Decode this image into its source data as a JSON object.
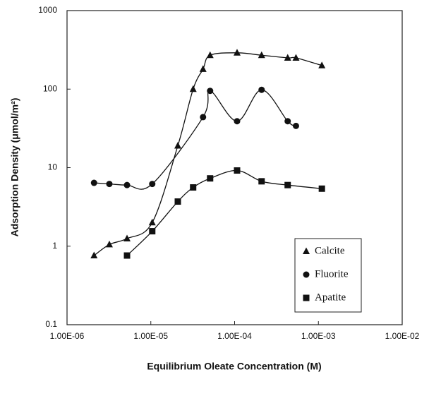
{
  "chart_data": {
    "type": "scatter",
    "xlabel": "Equilibrium Oleate Concentration (M)",
    "ylabel": "Adsorption Density (μmol/m²)",
    "xscale": "log",
    "yscale": "log",
    "xlim": [
      1e-06,
      0.01
    ],
    "xticks": [
      {
        "value": 1e-06,
        "label": "1.00E-06"
      },
      {
        "value": 1e-05,
        "label": "1.00E-05"
      },
      {
        "value": 0.0001,
        "label": "1.00E-04"
      },
      {
        "value": 0.001,
        "label": "1.00E-03"
      },
      {
        "value": 0.01,
        "label": "1.00E-02"
      }
    ],
    "ylim": [
      0.1,
      1000
    ],
    "yticks": [
      0.1,
      1,
      10,
      100,
      1000
    ],
    "series": [
      {
        "name": "Calcite",
        "color": "#111111",
        "marker": "triangle",
        "x": [
          2.1e-06,
          3.2e-06,
          5.2e-06,
          1.04e-05,
          2.1e-05,
          3.2e-05,
          4.2e-05,
          5.1e-05,
          0.000107,
          0.00021,
          0.00043,
          0.00054,
          0.0011
        ],
        "values": [
          0.76,
          1.05,
          1.25,
          2.0,
          19,
          100,
          180,
          270,
          290,
          270,
          250,
          250,
          200
        ]
      },
      {
        "name": "Fluorite",
        "color": "#111111",
        "marker": "circle",
        "x": [
          2.1e-06,
          3.2e-06,
          5.2e-06,
          1.04e-05,
          4.2e-05,
          5.1e-05,
          0.000107,
          0.00021,
          0.00043,
          0.00054
        ],
        "values": [
          6.4,
          6.2,
          6.0,
          6.2,
          44,
          95,
          39,
          98,
          39,
          34
        ]
      },
      {
        "name": "Apatite",
        "color": "#111111",
        "marker": "square",
        "x": [
          5.2e-06,
          1.04e-05,
          2.1e-05,
          3.2e-05,
          5.1e-05,
          0.000107,
          0.00021,
          0.00043,
          0.0011
        ],
        "values": [
          0.76,
          1.55,
          3.7,
          5.6,
          7.3,
          9.2,
          6.7,
          6.0,
          5.4
        ]
      }
    ]
  }
}
